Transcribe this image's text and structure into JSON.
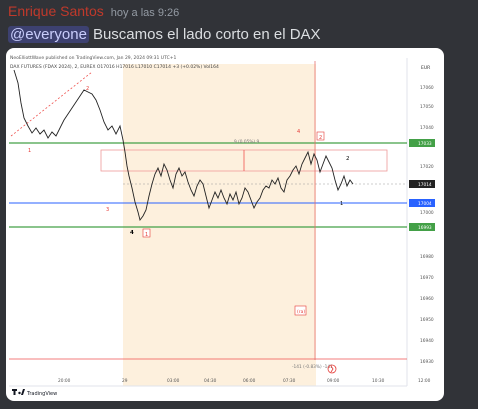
{
  "message": {
    "author": "Enrique Santos",
    "timestamp": "hoy a las 9:26",
    "mention": "@everyone",
    "text": "Buscamos el lado corto en el DAX"
  },
  "chart_image": {
    "header_line1": "NeoElliottWave published on TradingView.com, Jan 29, 2024 09:31 UTC+1",
    "header_line2": "DAX FUTURES (FDAX 2024), 2, EUREX   O17016  H17016  L17010  C17014  +3 (+0.02%)  Vol164",
    "currency": "EUR",
    "price_tags": [
      {
        "label": "17060",
        "kind": "axis"
      },
      {
        "label": "17050",
        "kind": "axis"
      },
      {
        "label": "17040",
        "kind": "axis"
      },
      {
        "label": "17033",
        "kind": "green"
      },
      {
        "label": "17020",
        "kind": "axis"
      },
      {
        "label": "17014",
        "kind": "dark"
      },
      {
        "label": "17004",
        "kind": "blue"
      },
      {
        "label": "17000",
        "kind": "axis"
      },
      {
        "label": "16993",
        "kind": "green"
      },
      {
        "label": "16980",
        "kind": "axis"
      },
      {
        "label": "16970",
        "kind": "axis"
      },
      {
        "label": "16960",
        "kind": "axis"
      },
      {
        "label": "16950",
        "kind": "axis"
      },
      {
        "label": "16940",
        "kind": "axis"
      },
      {
        "label": "16930",
        "kind": "axis"
      }
    ],
    "time_labels": [
      "20:00",
      "29",
      "03:00",
      "04:30",
      "06:00",
      "07:30",
      "09:00",
      "10:30",
      "12:00"
    ],
    "annotations": {
      "range_measure": "9 (0.05%) 9",
      "bottom_measure": "-141 (-0.83%) -141",
      "wave1": "1",
      "wave2_top": "2",
      "wave3": "3",
      "wave4_low": "4",
      "wave1_box": "1",
      "wave4_red": "4",
      "wave2_box": "2",
      "wave2_right": "2",
      "wave1_right": "1",
      "wave_ra": "(ra)"
    },
    "logo_text": "TradingView"
  }
}
